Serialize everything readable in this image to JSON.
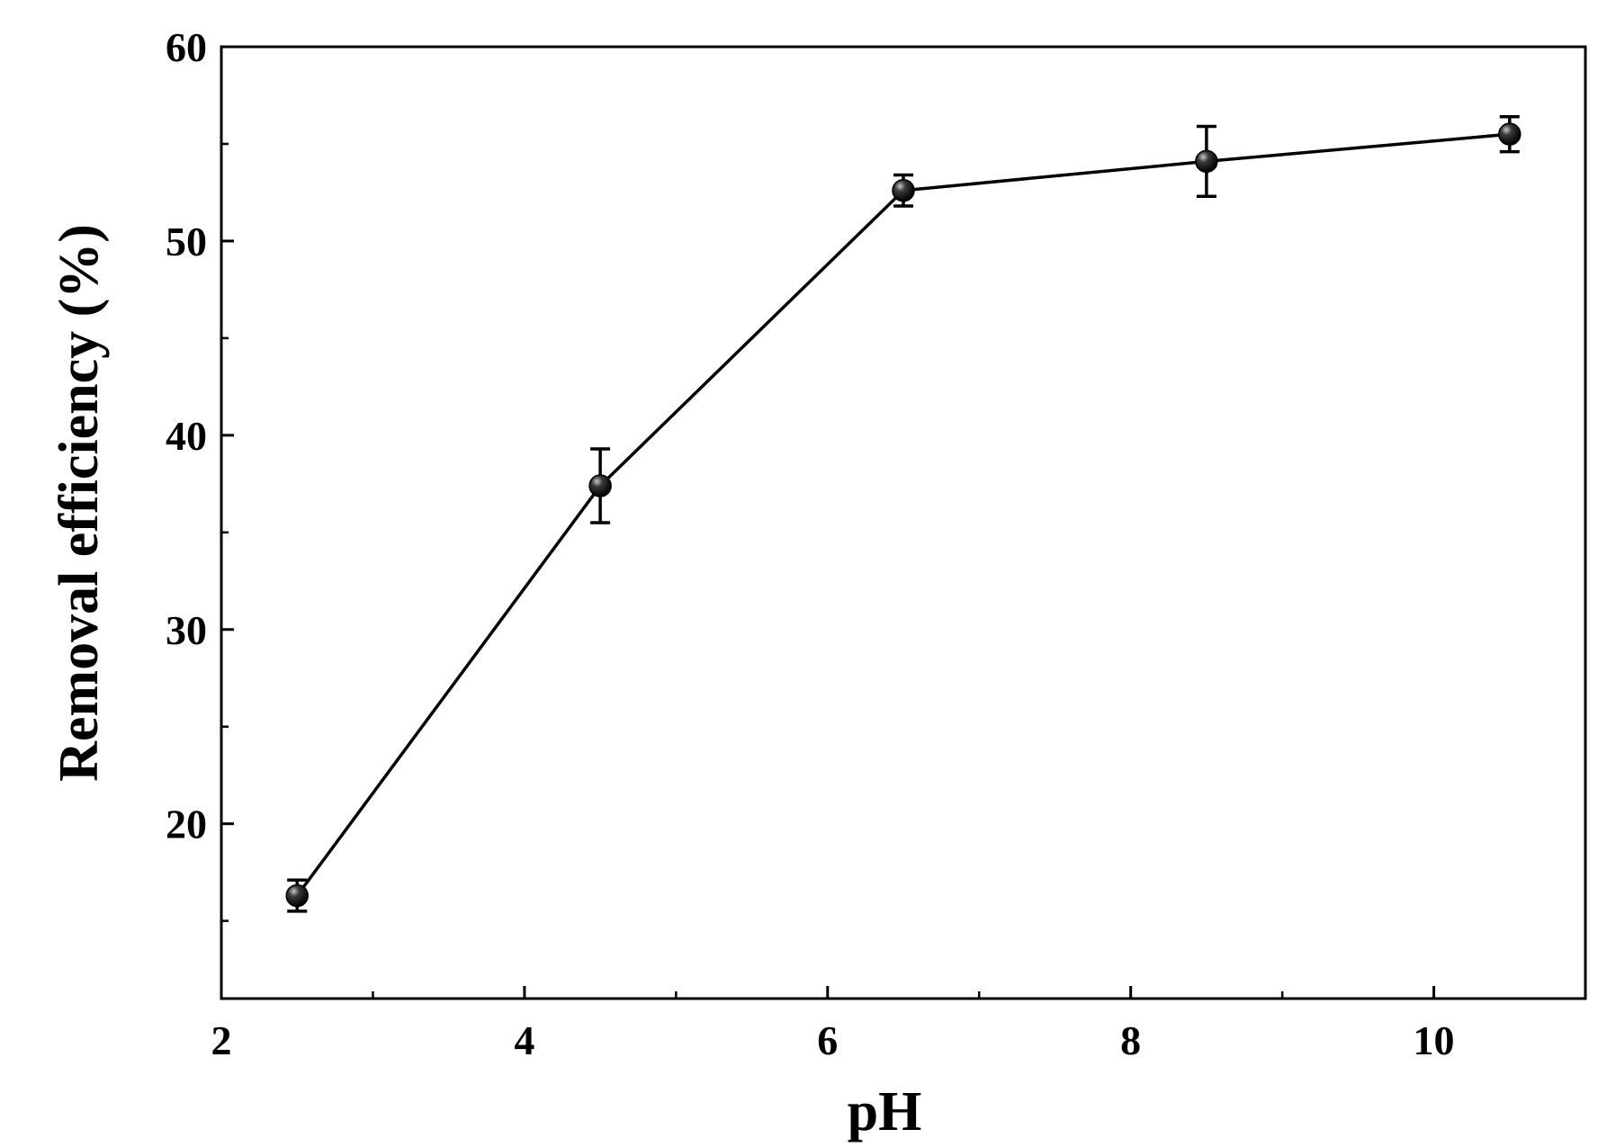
{
  "chart_data": {
    "type": "line",
    "title": "",
    "xlabel": "pH",
    "ylabel": "Removal efficiency (%)",
    "xlim": [
      2,
      11
    ],
    "ylim": [
      11,
      60
    ],
    "x_ticks": [
      2,
      4,
      6,
      8,
      10
    ],
    "x_tick_labels": [
      "2",
      "4",
      "6",
      "8",
      "10"
    ],
    "x_minor_ticks": [
      3,
      5,
      7,
      9
    ],
    "y_ticks": [
      20,
      30,
      40,
      50,
      60
    ],
    "y_tick_labels": [
      "20",
      "30",
      "40",
      "50",
      "60"
    ],
    "y_minor_ticks": [
      15,
      25,
      35,
      45,
      55
    ],
    "grid": false,
    "legend": "none",
    "series": [
      {
        "marker": "sphere",
        "color": "#000000",
        "points": [
          {
            "x": 2.5,
            "y": 16.3,
            "err": 0.8
          },
          {
            "x": 4.5,
            "y": 37.4,
            "err": 1.9
          },
          {
            "x": 6.5,
            "y": 52.6,
            "err": 0.8
          },
          {
            "x": 8.5,
            "y": 54.1,
            "err": 1.8
          },
          {
            "x": 10.5,
            "y": 55.5,
            "err": 0.9
          }
        ]
      }
    ]
  }
}
